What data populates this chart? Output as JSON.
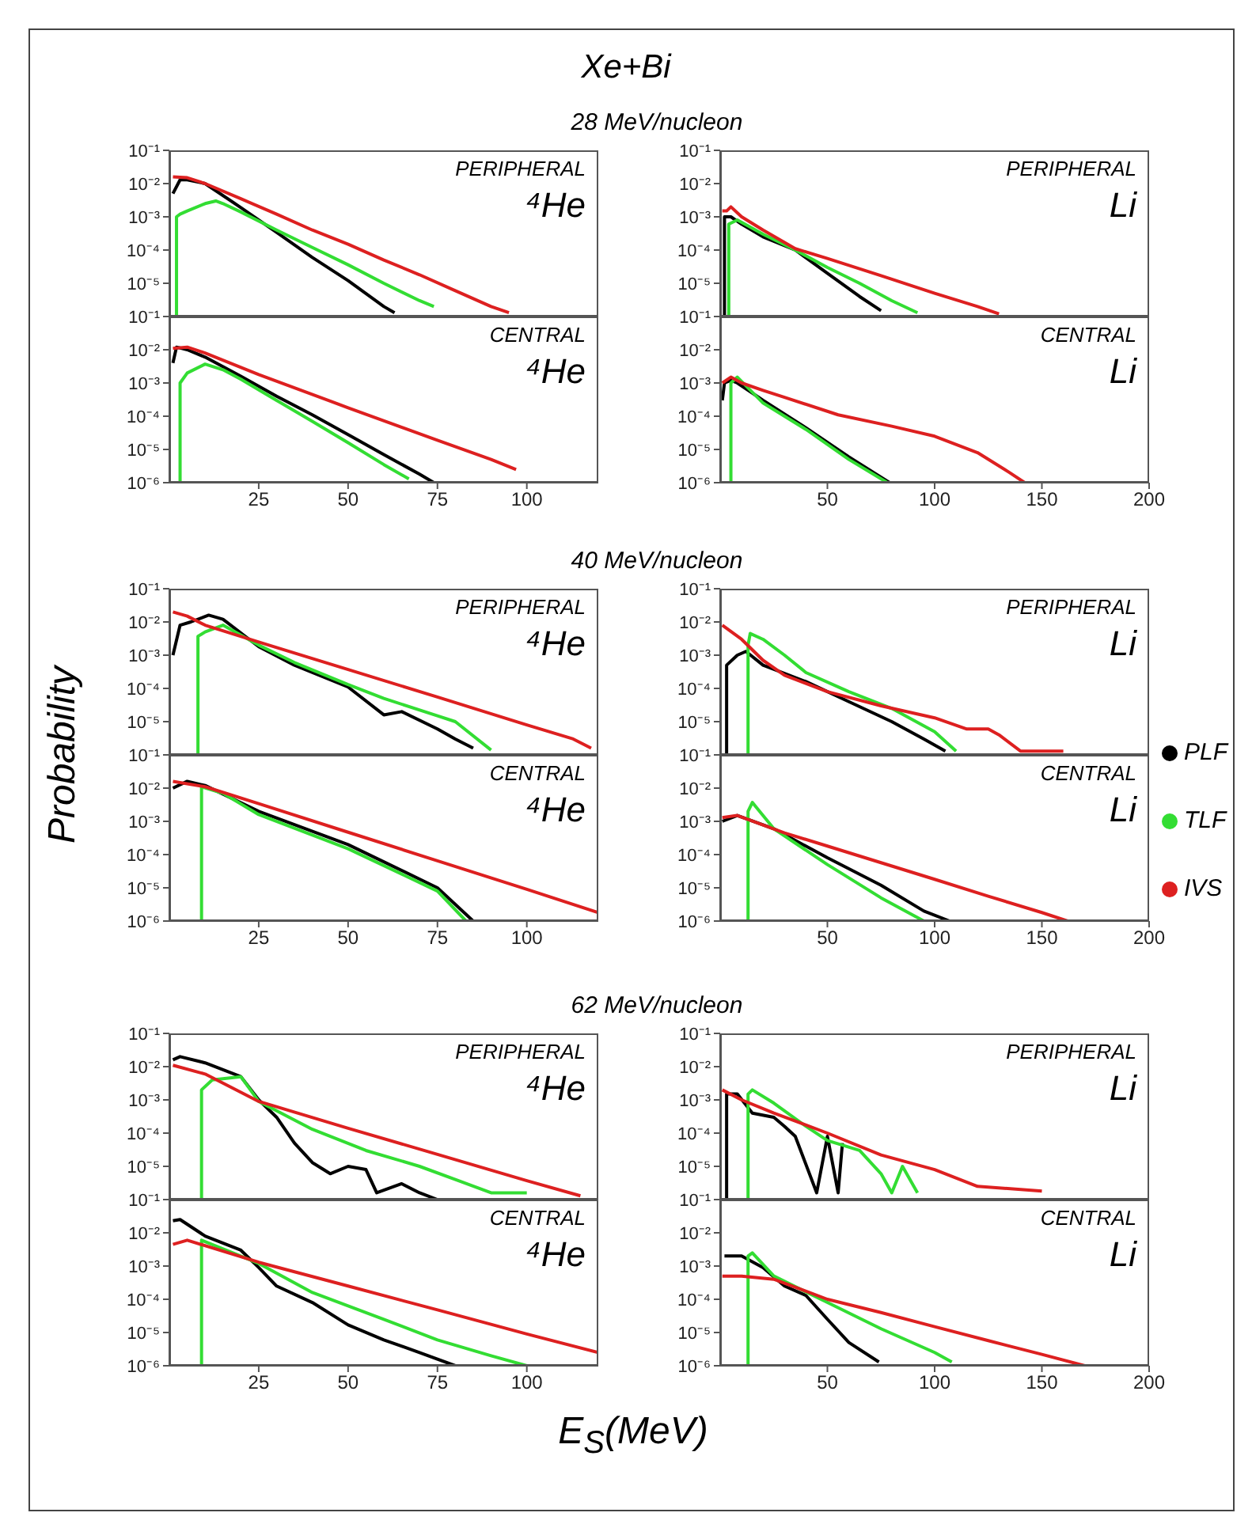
{
  "chart_data": [
    {
      "type": "line",
      "title": "Xe+Bi",
      "subtitle": "28 MeV/nucleon",
      "annotations": [
        "PERIPHERAL",
        "⁴He"
      ],
      "xlim": [
        0,
        120
      ],
      "xticks": [
        25,
        50,
        75,
        100
      ],
      "ylim": [
        1e-06,
        0.1
      ],
      "log": true,
      "tick_labels": "y",
      "yticks": [
        {
          "value": 0.1,
          "label": "10⁻¹"
        },
        {
          "value": 0.01,
          "label": "10⁻²"
        },
        {
          "value": 0.001,
          "label": "10⁻³"
        },
        {
          "value": 0.0001,
          "label": "10⁻⁴"
        },
        {
          "value": 1e-05,
          "label": "10⁻⁵"
        },
        {
          "value": 1e-06,
          "label": null
        }
      ],
      "series": [
        {
          "color": "#000000",
          "x": [
            1,
            3,
            5,
            10,
            20,
            30,
            40,
            50,
            60,
            63
          ],
          "values": [
            0.005,
            0.013,
            0.013,
            0.01,
            0.0019,
            0.00034,
            6e-05,
            1.2e-05,
            2e-06,
            1.3e-06
          ]
        },
        {
          "color": "#33dd33",
          "x": [
            2,
            2,
            3,
            5,
            10,
            13,
            15,
            20,
            30,
            40,
            50,
            60,
            70,
            74
          ],
          "values": [
            1e-06,
            0.001,
            0.0012,
            0.0015,
            0.0025,
            0.003,
            0.0025,
            0.0014,
            0.0004,
            0.00012,
            3.6e-05,
            1e-05,
            3e-06,
            2e-06
          ]
        },
        {
          "color": "#dd2020",
          "x": [
            1,
            5,
            10,
            20,
            30,
            40,
            50,
            60,
            70,
            80,
            90,
            95
          ],
          "values": [
            0.016,
            0.015,
            0.01,
            0.0035,
            0.0012,
            0.0004,
            0.00015,
            5e-05,
            1.8e-05,
            6e-06,
            2e-06,
            1.3e-06
          ]
        }
      ]
    },
    {
      "type": "line",
      "annotations": [
        "PERIPHERAL",
        "Li"
      ],
      "xlim": [
        0,
        200
      ],
      "xticks": [
        50,
        100,
        150,
        200
      ],
      "ylim": [
        1e-06,
        0.1
      ],
      "log": true,
      "tick_labels": "y",
      "yticks": [
        {
          "value": 0.1,
          "label": "10⁻¹"
        },
        {
          "value": 0.01,
          "label": "10⁻²"
        },
        {
          "value": 0.001,
          "label": "10⁻³"
        },
        {
          "value": 0.0001,
          "label": "10⁻⁴"
        },
        {
          "value": 1e-05,
          "label": "10⁻⁵"
        },
        {
          "value": 1e-06,
          "label": null
        }
      ],
      "series": [
        {
          "color": "#000000",
          "x": [
            2,
            2,
            5,
            10,
            20,
            35,
            50,
            65,
            75
          ],
          "values": [
            1e-06,
            0.001,
            0.001,
            0.0006,
            0.00025,
            0.0001,
            2e-05,
            4e-06,
            1.5e-06
          ]
        },
        {
          "color": "#33dd33",
          "x": [
            4,
            4,
            8,
            20,
            35,
            50,
            65,
            80,
            92
          ],
          "values": [
            1e-06,
            0.0006,
            0.0008,
            0.0003,
            0.0001,
            3e-05,
            1e-05,
            3e-06,
            1.3e-06
          ]
        },
        {
          "color": "#dd2020",
          "x": [
            1,
            3,
            5,
            10,
            20,
            35,
            50,
            75,
            100,
            120,
            130
          ],
          "values": [
            0.0015,
            0.0015,
            0.002,
            0.001,
            0.0004,
            0.00011,
            5.6e-05,
            1.7e-05,
            5e-06,
            2e-06,
            1.2e-06
          ]
        }
      ]
    },
    {
      "type": "line",
      "annotations": [
        "CENTRAL",
        "⁴He"
      ],
      "xlim": [
        0,
        120
      ],
      "xticks": [
        25,
        50,
        75,
        100
      ],
      "ylim": [
        1e-06,
        0.1
      ],
      "log": true,
      "yticks": [
        {
          "value": 0.1,
          "label": "10⁻¹"
        },
        {
          "value": 0.01,
          "label": "10⁻²"
        },
        {
          "value": 0.001,
          "label": "10⁻³"
        },
        {
          "value": 0.0001,
          "label": "10⁻⁴"
        },
        {
          "value": 1e-05,
          "label": "10⁻⁵"
        },
        {
          "value": 1e-06,
          "label": "10⁻⁶"
        }
      ],
      "series": [
        {
          "color": "#000000",
          "x": [
            1,
            2,
            5,
            10,
            20,
            30,
            40,
            50,
            60,
            70,
            74
          ],
          "values": [
            0.004,
            0.012,
            0.01,
            0.006,
            0.0016,
            0.0004,
            0.00011,
            2.8e-05,
            7e-06,
            1.8e-06,
            1e-06
          ]
        },
        {
          "color": "#33dd33",
          "x": [
            3,
            3,
            5,
            10,
            15,
            20,
            30,
            40,
            50,
            60,
            67
          ],
          "values": [
            1e-06,
            0.001,
            0.002,
            0.0037,
            0.0025,
            0.0013,
            0.0003,
            7e-05,
            1.6e-05,
            3.5e-06,
            1.3e-06
          ]
        },
        {
          "color": "#dd2020",
          "x": [
            1,
            5,
            10,
            25,
            50,
            75,
            90,
            97
          ],
          "values": [
            0.011,
            0.012,
            0.008,
            0.0018,
            0.00018,
            1.9e-05,
            5e-06,
            2.5e-06
          ]
        }
      ]
    },
    {
      "type": "line",
      "annotations": [
        "CENTRAL",
        "Li"
      ],
      "xlim": [
        0,
        200
      ],
      "xticks": [
        50,
        100,
        150,
        200
      ],
      "ylim": [
        1e-06,
        0.1
      ],
      "log": true,
      "yticks": [
        {
          "value": 0.1,
          "label": "10⁻¹"
        },
        {
          "value": 0.01,
          "label": "10⁻²"
        },
        {
          "value": 0.001,
          "label": "10⁻³"
        },
        {
          "value": 0.0001,
          "label": "10⁻⁴"
        },
        {
          "value": 1e-05,
          "label": "10⁻⁵"
        },
        {
          "value": 1e-06,
          "label": "10⁻⁶"
        }
      ],
      "series": [
        {
          "color": "#000000",
          "x": [
            1,
            2,
            5,
            8,
            20,
            40,
            60,
            79
          ],
          "values": [
            0.0003,
            0.001,
            0.0012,
            0.001,
            0.0003,
            4.5e-05,
            6e-06,
            1e-06
          ]
        },
        {
          "color": "#33dd33",
          "x": [
            5,
            5,
            8,
            20,
            40,
            60,
            78
          ],
          "values": [
            1e-06,
            0.001,
            0.0015,
            0.00025,
            4e-05,
            5e-06,
            1e-06
          ]
        },
        {
          "color": "#dd2020",
          "x": [
            1,
            5,
            10,
            20,
            30,
            55,
            80,
            100,
            120,
            135,
            142
          ],
          "values": [
            0.001,
            0.0015,
            0.001,
            0.0006,
            0.00037,
            0.00011,
            5e-05,
            2.5e-05,
            8e-06,
            2e-06,
            1e-06
          ]
        }
      ]
    },
    {
      "type": "line",
      "subtitle": "40 MeV/nucleon",
      "ylabel": "Probability",
      "annotations": [
        "PERIPHERAL",
        "⁴He"
      ],
      "xlim": [
        0,
        120
      ],
      "xticks": [
        25,
        50,
        75,
        100
      ],
      "ylim": [
        1e-06,
        0.1
      ],
      "log": true,
      "tick_labels": "y",
      "yticks": [
        {
          "value": 0.1,
          "label": "10⁻¹"
        },
        {
          "value": 0.01,
          "label": "10⁻²"
        },
        {
          "value": 0.001,
          "label": "10⁻³"
        },
        {
          "value": 0.0001,
          "label": "10⁻⁴"
        },
        {
          "value": 1e-05,
          "label": "10⁻⁵"
        },
        {
          "value": 1e-06,
          "label": null
        }
      ],
      "series": [
        {
          "color": "#000000",
          "x": [
            1,
            3,
            6,
            11,
            15,
            25,
            35,
            50,
            60,
            65,
            75,
            80,
            85
          ],
          "values": [
            0.001,
            0.008,
            0.01,
            0.016,
            0.012,
            0.0018,
            0.0005,
            0.00011,
            1.6e-05,
            2e-05,
            6e-06,
            3e-06,
            1.6e-06
          ]
        },
        {
          "color": "#33dd33",
          "x": [
            8,
            8,
            10,
            15,
            25,
            35,
            50,
            60,
            75,
            80,
            90
          ],
          "values": [
            1e-06,
            0.0037,
            0.005,
            0.008,
            0.002,
            0.0006,
            0.00013,
            5e-05,
            1.5e-05,
            1e-05,
            1.4e-06
          ]
        },
        {
          "color": "#dd2020",
          "x": [
            1,
            5,
            10,
            25,
            50,
            75,
            100,
            113,
            118
          ],
          "values": [
            0.02,
            0.015,
            0.008,
            0.0025,
            0.00037,
            5.5e-05,
            8e-06,
            3e-06,
            1.6e-06
          ]
        }
      ]
    },
    {
      "type": "line",
      "legend": "right",
      "annotations": [
        "PERIPHERAL",
        "Li"
      ],
      "xlim": [
        0,
        200
      ],
      "xticks": [
        50,
        100,
        150,
        200
      ],
      "ylim": [
        1e-06,
        0.1
      ],
      "log": true,
      "tick_labels": "y",
      "yticks": [
        {
          "value": 0.1,
          "label": "10⁻¹"
        },
        {
          "value": 0.01,
          "label": "10⁻²"
        },
        {
          "value": 0.001,
          "label": "10⁻³"
        },
        {
          "value": 0.0001,
          "label": "10⁻⁴"
        },
        {
          "value": 1e-05,
          "label": "10⁻⁵"
        },
        {
          "value": 1e-06,
          "label": null
        }
      ],
      "series": [
        {
          "name": "PLF",
          "color": "#000000",
          "x": [
            3,
            3,
            8,
            12,
            20,
            40,
            60,
            80,
            95,
            105
          ],
          "values": [
            1e-06,
            0.0005,
            0.001,
            0.0013,
            0.0005,
            0.00016,
            4e-05,
            1e-05,
            3e-06,
            1.3e-06
          ]
        },
        {
          "name": "TLF",
          "color": "#33dd33",
          "x": [
            13,
            13,
            14,
            20,
            30,
            40,
            60,
            80,
            100,
            110
          ],
          "values": [
            1e-06,
            0.002,
            0.0045,
            0.003,
            0.001,
            0.0003,
            8e-05,
            2.5e-05,
            5e-06,
            1.3e-06
          ]
        },
        {
          "name": "IVS",
          "color": "#dd2020",
          "x": [
            1,
            10,
            20,
            30,
            50,
            75,
            100,
            115,
            125,
            130,
            140,
            160
          ],
          "values": [
            0.008,
            0.003,
            0.0007,
            0.00025,
            8e-05,
            3e-05,
            1.3e-05,
            6e-06,
            6e-06,
            4e-06,
            1.3e-06,
            1.3e-06
          ]
        }
      ]
    },
    {
      "type": "line",
      "annotations": [
        "CENTRAL",
        "⁴He"
      ],
      "xlim": [
        0,
        120
      ],
      "xticks": [
        25,
        50,
        75,
        100
      ],
      "ylim": [
        1e-06,
        0.1
      ],
      "log": true,
      "yticks": [
        {
          "value": 0.1,
          "label": "10⁻¹"
        },
        {
          "value": 0.01,
          "label": "10⁻²"
        },
        {
          "value": 0.001,
          "label": "10⁻³"
        },
        {
          "value": 0.0001,
          "label": "10⁻⁴"
        },
        {
          "value": 1e-05,
          "label": "10⁻⁵"
        },
        {
          "value": 1e-06,
          "label": "10⁻⁶"
        }
      ],
      "series": [
        {
          "color": "#000000",
          "x": [
            1,
            5,
            10,
            25,
            50,
            75,
            85
          ],
          "values": [
            0.01,
            0.016,
            0.012,
            0.002,
            0.0002,
            1e-05,
            1e-06
          ]
        },
        {
          "color": "#33dd33",
          "x": [
            9,
            9,
            15,
            25,
            50,
            75,
            83
          ],
          "values": [
            1e-06,
            0.011,
            0.007,
            0.0016,
            0.00015,
            8e-06,
            1e-06
          ]
        },
        {
          "color": "#dd2020",
          "x": [
            1,
            10,
            25,
            50,
            75,
            100,
            120
          ],
          "values": [
            0.016,
            0.011,
            0.0034,
            0.00047,
            6.5e-05,
            9e-06,
            1.8e-06
          ]
        }
      ]
    },
    {
      "type": "line",
      "annotations": [
        "CENTRAL",
        "Li"
      ],
      "xlim": [
        0,
        200
      ],
      "xticks": [
        50,
        100,
        150,
        200
      ],
      "ylim": [
        1e-06,
        0.1
      ],
      "log": true,
      "yticks": [
        {
          "value": 0.1,
          "label": "10⁻¹"
        },
        {
          "value": 0.01,
          "label": "10⁻²"
        },
        {
          "value": 0.001,
          "label": "10⁻³"
        },
        {
          "value": 0.0001,
          "label": "10⁻⁴"
        },
        {
          "value": 1e-05,
          "label": "10⁻⁵"
        },
        {
          "value": 1e-06,
          "label": "10⁻⁶"
        }
      ],
      "series": [
        {
          "color": "#000000",
          "x": [
            1,
            8,
            25,
            50,
            75,
            95,
            107
          ],
          "values": [
            0.001,
            0.0015,
            0.0006,
            8e-05,
            1.2e-05,
            2e-06,
            1e-06
          ]
        },
        {
          "color": "#33dd33",
          "x": [
            13,
            13,
            15,
            25,
            50,
            75,
            95
          ],
          "values": [
            1e-06,
            0.002,
            0.0037,
            0.0006,
            5e-05,
            5e-06,
            1e-06
          ]
        },
        {
          "color": "#dd2020",
          "x": [
            1,
            8,
            30,
            50,
            75,
            100,
            125,
            150,
            162
          ],
          "values": [
            0.0013,
            0.0015,
            0.00045,
            0.00018,
            5.7e-05,
            1.8e-05,
            5.6e-06,
            1.8e-06,
            1e-06
          ]
        }
      ]
    },
    {
      "type": "line",
      "subtitle": "62 MeV/nucleon",
      "annotations": [
        "PERIPHERAL",
        "⁴He"
      ],
      "xlim": [
        0,
        120
      ],
      "xticks": [
        25,
        50,
        75,
        100
      ],
      "ylim": [
        1e-06,
        0.1
      ],
      "log": true,
      "tick_labels": "y",
      "yticks": [
        {
          "value": 0.1,
          "label": "10⁻¹"
        },
        {
          "value": 0.01,
          "label": "10⁻²"
        },
        {
          "value": 0.001,
          "label": "10⁻³"
        },
        {
          "value": 0.0001,
          "label": "10⁻⁴"
        },
        {
          "value": 1e-05,
          "label": "10⁻⁵"
        },
        {
          "value": 1e-06,
          "label": null
        }
      ],
      "series": [
        {
          "color": "#000000",
          "x": [
            1,
            3,
            10,
            20,
            25,
            30,
            35,
            40,
            45,
            50,
            55,
            58,
            65,
            70,
            75
          ],
          "values": [
            0.016,
            0.02,
            0.013,
            0.005,
            0.001,
            0.0003,
            5e-05,
            1.3e-05,
            6e-06,
            1e-05,
            8e-06,
            1.6e-06,
            3e-06,
            1.6e-06,
            1e-06
          ]
        },
        {
          "color": "#33dd33",
          "x": [
            9,
            9,
            12,
            20,
            25,
            40,
            55,
            70,
            80,
            90,
            100
          ],
          "values": [
            1e-06,
            0.002,
            0.004,
            0.005,
            0.0009,
            0.00013,
            3e-05,
            1e-05,
            4e-06,
            1.6e-06,
            1.6e-06
          ]
        },
        {
          "color": "#dd2020",
          "x": [
            1,
            10,
            25,
            50,
            75,
            100,
            115
          ],
          "values": [
            0.011,
            0.006,
            0.0009,
            0.00014,
            2.3e-05,
            3.7e-06,
            1.3e-06
          ]
        }
      ]
    },
    {
      "type": "line",
      "annotations": [
        "PERIPHERAL",
        "Li"
      ],
      "xlim": [
        0,
        200
      ],
      "xticks": [
        50,
        100,
        150,
        200
      ],
      "ylim": [
        1e-06,
        0.1
      ],
      "log": true,
      "tick_labels": "y",
      "yticks": [
        {
          "value": 0.1,
          "label": "10⁻¹"
        },
        {
          "value": 0.01,
          "label": "10⁻²"
        },
        {
          "value": 0.001,
          "label": "10⁻³"
        },
        {
          "value": 0.0001,
          "label": "10⁻⁴"
        },
        {
          "value": 1e-05,
          "label": "10⁻⁵"
        },
        {
          "value": 1e-06,
          "label": null
        }
      ],
      "series": [
        {
          "color": "#000000",
          "x": [
            3,
            3,
            8,
            15,
            25,
            30,
            35,
            45,
            50,
            55,
            57
          ],
          "values": [
            1e-06,
            0.0015,
            0.0015,
            0.0004,
            0.0003,
            0.00016,
            8e-05,
            1.6e-06,
            8e-05,
            1.6e-06,
            5e-05
          ]
        },
        {
          "color": "#33dd33",
          "x": [
            13,
            13,
            15,
            25,
            40,
            50,
            65,
            75,
            80,
            85,
            92
          ],
          "values": [
            1e-06,
            0.0015,
            0.002,
            0.0008,
            0.00016,
            6e-05,
            3e-05,
            6e-06,
            1.6e-06,
            1e-05,
            1.6e-06
          ]
        },
        {
          "color": "#dd2020",
          "x": [
            1,
            10,
            25,
            50,
            75,
            100,
            120,
            150
          ],
          "values": [
            0.002,
            0.001,
            0.0004,
            0.0001,
            2.2e-05,
            8e-06,
            2.5e-06,
            1.8e-06
          ]
        }
      ]
    },
    {
      "type": "line",
      "xlabel": "E$_{S}$(MeV)",
      "annotations": [
        "CENTRAL",
        "⁴He"
      ],
      "xlim": [
        0,
        120
      ],
      "xticks": [
        25,
        50,
        75,
        100
      ],
      "ylim": [
        1e-06,
        0.1
      ],
      "log": true,
      "yticks": [
        {
          "value": 0.1,
          "label": "10⁻¹"
        },
        {
          "value": 0.01,
          "label": "10⁻²"
        },
        {
          "value": 0.001,
          "label": "10⁻³"
        },
        {
          "value": 0.0001,
          "label": "10⁻⁴"
        },
        {
          "value": 1e-05,
          "label": "10⁻⁵"
        },
        {
          "value": 1e-06,
          "label": "10⁻⁶"
        }
      ],
      "series": [
        {
          "color": "#000000",
          "x": [
            1,
            3,
            10,
            20,
            25,
            30,
            40,
            50,
            60,
            70,
            80
          ],
          "values": [
            0.023,
            0.025,
            0.008,
            0.003,
            0.0009,
            0.00025,
            8e-05,
            1.7e-05,
            6e-06,
            2.5e-06,
            1e-06
          ]
        },
        {
          "color": "#33dd33",
          "x": [
            9,
            9,
            25,
            40,
            60,
            75,
            90,
            100
          ],
          "values": [
            1e-06,
            0.006,
            0.0012,
            0.00016,
            2.5e-05,
            6e-06,
            2e-06,
            1e-06
          ]
        },
        {
          "color": "#dd2020",
          "x": [
            1,
            5,
            25,
            50,
            75,
            100,
            120
          ],
          "values": [
            0.0045,
            0.006,
            0.0013,
            0.00025,
            4.8e-05,
            9e-06,
            2.5e-06
          ]
        }
      ]
    },
    {
      "type": "line",
      "annotations": [
        "CENTRAL",
        "Li"
      ],
      "xlim": [
        0,
        200
      ],
      "xticks": [
        50,
        100,
        150,
        200
      ],
      "ylim": [
        1e-06,
        0.1
      ],
      "log": true,
      "yticks": [
        {
          "value": 0.1,
          "label": "10⁻¹"
        },
        {
          "value": 0.01,
          "label": "10⁻²"
        },
        {
          "value": 0.001,
          "label": "10⁻³"
        },
        {
          "value": 0.0001,
          "label": "10⁻⁴"
        },
        {
          "value": 1e-05,
          "label": "10⁻⁵"
        },
        {
          "value": 1e-06,
          "label": "10⁻⁶"
        }
      ],
      "series": [
        {
          "color": "#000000",
          "x": [
            2,
            10,
            20,
            30,
            40,
            50,
            60,
            74
          ],
          "values": [
            0.002,
            0.002,
            0.0009,
            0.00025,
            0.00013,
            2.5e-05,
            5e-06,
            1.3e-06
          ]
        },
        {
          "color": "#33dd33",
          "x": [
            13,
            13,
            15,
            25,
            50,
            75,
            100,
            108
          ],
          "values": [
            1e-06,
            0.002,
            0.0025,
            0.0005,
            8e-05,
            1.3e-05,
            2.5e-06,
            1.3e-06
          ]
        },
        {
          "color": "#dd2020",
          "x": [
            1,
            10,
            25,
            50,
            75,
            100,
            125,
            150,
            170
          ],
          "values": [
            0.0005,
            0.0005,
            0.0004,
            0.0001,
            4e-05,
            1.5e-05,
            5.7e-06,
            2.2e-06,
            1e-06
          ]
        }
      ]
    }
  ]
}
